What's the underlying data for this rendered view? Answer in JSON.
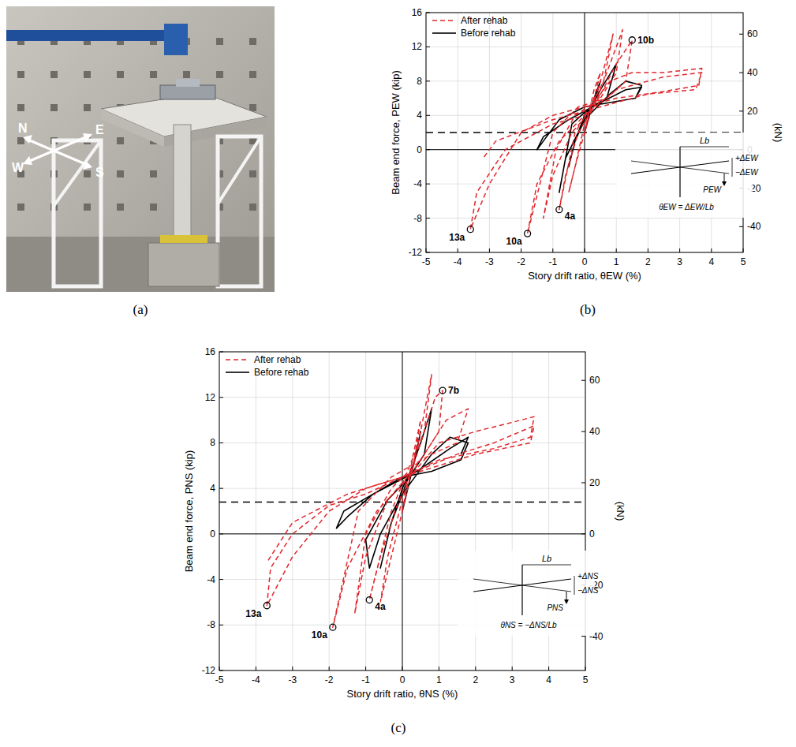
{
  "panel_labels": [
    "(a)",
    "(b)",
    "(c)"
  ],
  "photo": {
    "compass": [
      "N",
      "E",
      "W",
      "S"
    ]
  },
  "chart_data": [
    {
      "type": "line",
      "x_label": "Story drift ratio, θEW (%)",
      "y_label": "Beam end force, PEW (kip)",
      "y2_label": "(kN)",
      "xlim": [
        -5,
        5
      ],
      "xticks": [
        -5,
        -4,
        -3,
        -2,
        -1,
        0,
        1,
        2,
        3,
        4,
        5
      ],
      "ylim": [
        -12,
        16
      ],
      "yticks": [
        -12,
        -8,
        -4,
        0,
        4,
        8,
        12,
        16
      ],
      "y2lim": [
        -53.38,
        71.17
      ],
      "y2ticks": [
        -40,
        -20,
        0,
        20,
        40,
        60
      ],
      "grid": true,
      "legend": "top-left",
      "reference_y": 2,
      "series": [
        {
          "name": "After rehab",
          "color": "#e0262b",
          "line_style": "dashed",
          "x": [
            0,
            0.3,
            0.5,
            0.3,
            0,
            -0.3,
            -0.5,
            -0.3,
            0,
            0.5,
            0.9,
            0.6,
            0.2,
            -0.3,
            -0.8,
            -0.6,
            -0.2,
            0.3,
            0.9,
            1.2,
            1.0,
            0.5,
            -0.3,
            -0.9,
            -1.3,
            -1.0,
            -0.4,
            0.3,
            1.0,
            1.5,
            1.3,
            0.7,
            -0.2,
            -1.0,
            -1.8,
            -1.5,
            -0.8,
            0,
            0.8,
            1.5,
            2.5,
            3.7,
            3.6,
            2.5,
            1.0,
            0,
            -1.0,
            -2.0,
            -3.0,
            -3.6,
            -3.4,
            -2.5,
            -1.0,
            0,
            1.0,
            2.5,
            3.7,
            3.5,
            2.0,
            0.5,
            -1.0,
            -2.8,
            -3.2
          ],
          "values": [
            2,
            7,
            9,
            6,
            3,
            -2,
            -5,
            -2,
            2,
            8,
            13.5,
            8,
            5,
            2,
            -7,
            -3,
            2,
            5,
            11,
            14,
            9,
            6,
            4,
            0,
            -8,
            -3,
            2,
            5,
            10,
            12.8,
            8,
            6,
            5,
            2,
            -9.8,
            -4,
            1,
            4,
            8,
            9,
            9,
            9.5,
            7.5,
            6.8,
            6,
            5,
            4,
            2,
            -4,
            -9.3,
            -5,
            0,
            3,
            4,
            7,
            8.5,
            9,
            7,
            6.5,
            5,
            3.5,
            1,
            -1
          ]
        },
        {
          "name": "Before rehab",
          "color": "#000000",
          "line_style": "solid",
          "x": [
            0,
            0.3,
            0.5,
            0.3,
            0,
            -0.3,
            -0.5,
            -0.3,
            0,
            0.5,
            1.0,
            0.7,
            0.2,
            -0.4,
            -0.8,
            -0.6,
            0,
            0.8,
            1.3,
            1.8,
            1.6,
            0.8,
            0,
            -0.8,
            -1.3,
            -1.5,
            -1.3,
            -0.5,
            0.5,
            1.3,
            1.8,
            1.6
          ],
          "values": [
            2,
            6,
            8,
            5.5,
            4,
            1,
            -2,
            1,
            3.5,
            7,
            10,
            6,
            5,
            3,
            -5,
            -1,
            3.5,
            6.5,
            8,
            7.5,
            6,
            5.5,
            5,
            3.5,
            1,
            0,
            1.5,
            3.5,
            5.5,
            7,
            7.3,
            6
          ]
        }
      ],
      "annotations": [
        {
          "text": "10b",
          "x": 1.5,
          "y": 12.8
        },
        {
          "text": "4a",
          "x": -0.8,
          "y": -7
        },
        {
          "text": "10a",
          "x": -1.8,
          "y": -9.8
        },
        {
          "text": "13a",
          "x": -3.6,
          "y": -9.3
        }
      ],
      "inset": {
        "span": "Lb",
        "up": "+ΔEW",
        "down": "−ΔEW",
        "force": "PEW",
        "formula": "θEW = ΔEW/Lb"
      }
    },
    {
      "type": "line",
      "x_label": "Story drift ratio, θNS (%)",
      "y_label": "Beam end force, PNS (kip)",
      "y2_label": "(kN)",
      "xlim": [
        -5,
        5
      ],
      "xticks": [
        -5,
        -4,
        -3,
        -2,
        -1,
        0,
        1,
        2,
        3,
        4,
        5
      ],
      "ylim": [
        -12,
        16
      ],
      "yticks": [
        -12,
        -8,
        -4,
        0,
        4,
        8,
        12,
        16
      ],
      "y2lim": [
        -53.38,
        71.17
      ],
      "y2ticks": [
        -40,
        -20,
        0,
        20,
        40,
        60
      ],
      "grid": true,
      "legend": "top-left",
      "reference_y": 2.8,
      "series": [
        {
          "name": "After rehab",
          "color": "#e0262b",
          "line_style": "dashed",
          "x": [
            0,
            0.3,
            0.5,
            0.3,
            0,
            -0.4,
            -0.6,
            -0.3,
            0,
            0.5,
            0.8,
            0.6,
            0.2,
            -0.3,
            -0.9,
            -0.6,
            -0.2,
            0.3,
            0.9,
            1.1,
            1.0,
            0.5,
            -0.3,
            -1.0,
            -1.3,
            -1.0,
            -0.4,
            0.4,
            1.2,
            1.8,
            1.5,
            0.8,
            -0.3,
            -1.2,
            -1.9,
            -1.5,
            -0.7,
            0.2,
            1.0,
            2.0,
            3.0,
            3.6,
            3.5,
            2.5,
            1.0,
            0,
            -1.0,
            -2.0,
            -3.0,
            -3.7,
            -3.6,
            -3.0,
            -2.0,
            -1.0,
            0,
            1.5,
            2.5,
            3.6,
            3.5,
            2.0,
            0.5,
            -1.5,
            -3.0,
            -3.7
          ],
          "values": [
            2,
            7,
            10,
            6,
            3,
            -2,
            -6,
            -2,
            2,
            9,
            14,
            9,
            6,
            2,
            -5.8,
            -2,
            2,
            6,
            12,
            12.6,
            9,
            6.5,
            4,
            0,
            -7,
            -2,
            3,
            6,
            10,
            11,
            8,
            7,
            5,
            2,
            -8.2,
            -3,
            2,
            5,
            8,
            9,
            9.8,
            10.3,
            8.5,
            7.5,
            6.5,
            5,
            4,
            2,
            -2,
            -6.3,
            -3,
            0,
            2.5,
            3.5,
            5,
            7,
            8,
            9.5,
            8,
            7,
            5.5,
            3.5,
            1,
            -2.5
          ]
        },
        {
          "name": "Before rehab",
          "color": "#000000",
          "line_style": "solid",
          "x": [
            0,
            0.3,
            0.5,
            0.3,
            0,
            -0.3,
            -0.6,
            -0.3,
            0,
            0.5,
            0.8,
            0.6,
            0.2,
            -0.4,
            -1.0,
            -0.9,
            -0.6,
            0,
            0.8,
            1.3,
            1.8,
            1.6,
            0.8,
            0,
            -0.8,
            -1.5,
            -1.8,
            -1.6,
            -0.8,
            0.4,
            1.3,
            1.8,
            1.6
          ],
          "values": [
            2,
            6,
            9,
            6,
            4,
            1,
            -3,
            1,
            3.5,
            8,
            11,
            7,
            5,
            3,
            -0.5,
            -3,
            0,
            3.5,
            7,
            8.5,
            8,
            6.5,
            5.5,
            5,
            3.5,
            1.5,
            0.5,
            2,
            3.5,
            5.5,
            7.5,
            8.5,
            7
          ]
        }
      ],
      "annotations": [
        {
          "text": "7b",
          "x": 1.1,
          "y": 12.6
        },
        {
          "text": "4a",
          "x": -0.9,
          "y": -5.8
        },
        {
          "text": "10a",
          "x": -1.9,
          "y": -8.2
        },
        {
          "text": "13a",
          "x": -3.7,
          "y": -6.3
        }
      ],
      "inset": {
        "span": "Lb",
        "up": "+ΔNS",
        "down": "−ΔNS",
        "force": "PNS",
        "formula": "θNS = −ΔNS/Lb"
      }
    }
  ]
}
